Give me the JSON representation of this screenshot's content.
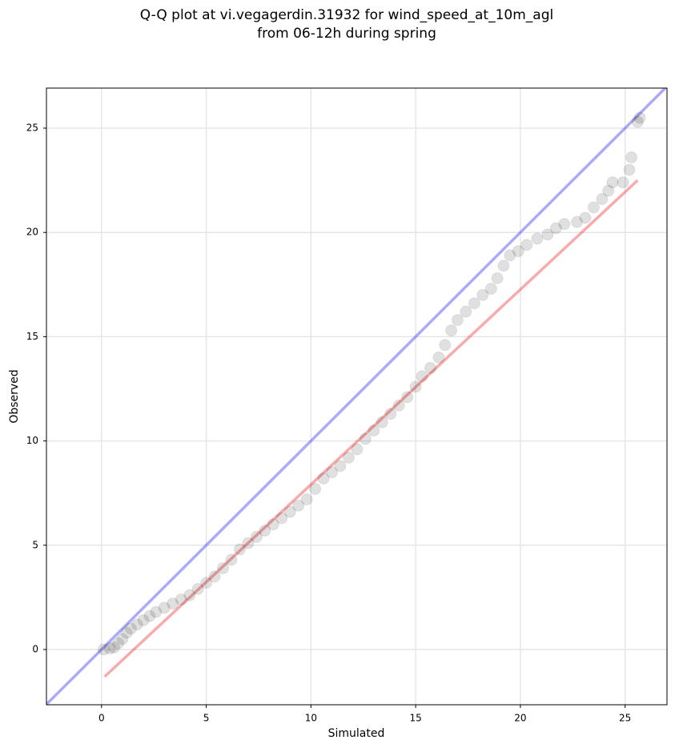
{
  "chart_data": {
    "type": "scatter",
    "title": [
      "Q-Q plot at vi.vegagerdin.31932 for wind_speed_at_10m_agl",
      "from 06-12h during spring"
    ],
    "x_label": "Simulated",
    "y_label": "Observed",
    "xlim": [
      -2.63,
      27.0
    ],
    "ylim": [
      -2.65,
      26.92
    ],
    "xticks": [
      0,
      5,
      10,
      15,
      20,
      25
    ],
    "yticks": [
      0,
      5,
      10,
      15,
      20,
      25
    ],
    "grid": true,
    "color": "#000000",
    "x": [
      0.1,
      0.4,
      0.6,
      0.8,
      1.0,
      1.2,
      1.4,
      1.7,
      2.0,
      2.3,
      2.6,
      3.0,
      3.4,
      3.8,
      4.2,
      4.6,
      5.0,
      5.4,
      5.8,
      6.2,
      6.6,
      7.0,
      7.4,
      7.8,
      8.2,
      8.6,
      9.0,
      9.4,
      9.8,
      10.2,
      10.6,
      11.0,
      11.4,
      11.8,
      12.2,
      12.6,
      13.0,
      13.4,
      13.8,
      14.2,
      14.6,
      15.0,
      15.3,
      15.7,
      16.1,
      16.4,
      16.7,
      17.0,
      17.4,
      17.8,
      18.2,
      18.6,
      18.9,
      19.2,
      19.5,
      19.9,
      20.3,
      20.8,
      21.3,
      21.7,
      22.1,
      22.7,
      23.1,
      23.5,
      23.9,
      24.2,
      24.4,
      24.9,
      25.2,
      25.3,
      25.6,
      25.7
    ],
    "values": [
      0,
      0.05,
      0.1,
      0.3,
      0.5,
      0.8,
      1.0,
      1.2,
      1.4,
      1.6,
      1.8,
      2.0,
      2.2,
      2.4,
      2.6,
      2.9,
      3.2,
      3.5,
      3.9,
      4.3,
      4.8,
      5.1,
      5.4,
      5.7,
      6.0,
      6.3,
      6.6,
      6.9,
      7.2,
      7.7,
      8.2,
      8.5,
      8.8,
      9.2,
      9.6,
      10.1,
      10.5,
      10.9,
      11.3,
      11.7,
      12.1,
      12.6,
      13.1,
      13.5,
      14.0,
      14.6,
      15.3,
      15.8,
      16.2,
      16.6,
      17.0,
      17.3,
      17.8,
      18.4,
      18.9,
      19.1,
      19.4,
      19.7,
      19.9,
      20.2,
      20.4,
      20.5,
      20.7,
      21.2,
      21.6,
      22.0,
      22.4,
      22.4,
      23.0,
      23.6,
      25.3,
      25.5
    ],
    "lines": [
      {
        "color": "#0000ee",
        "x": [
          -2.63,
          27.0
        ],
        "values": [
          -2.63,
          27.0
        ]
      },
      {
        "color": "#ee0000",
        "x": [
          0.15,
          25.6
        ],
        "values": [
          -1.3,
          22.5
        ]
      }
    ]
  }
}
